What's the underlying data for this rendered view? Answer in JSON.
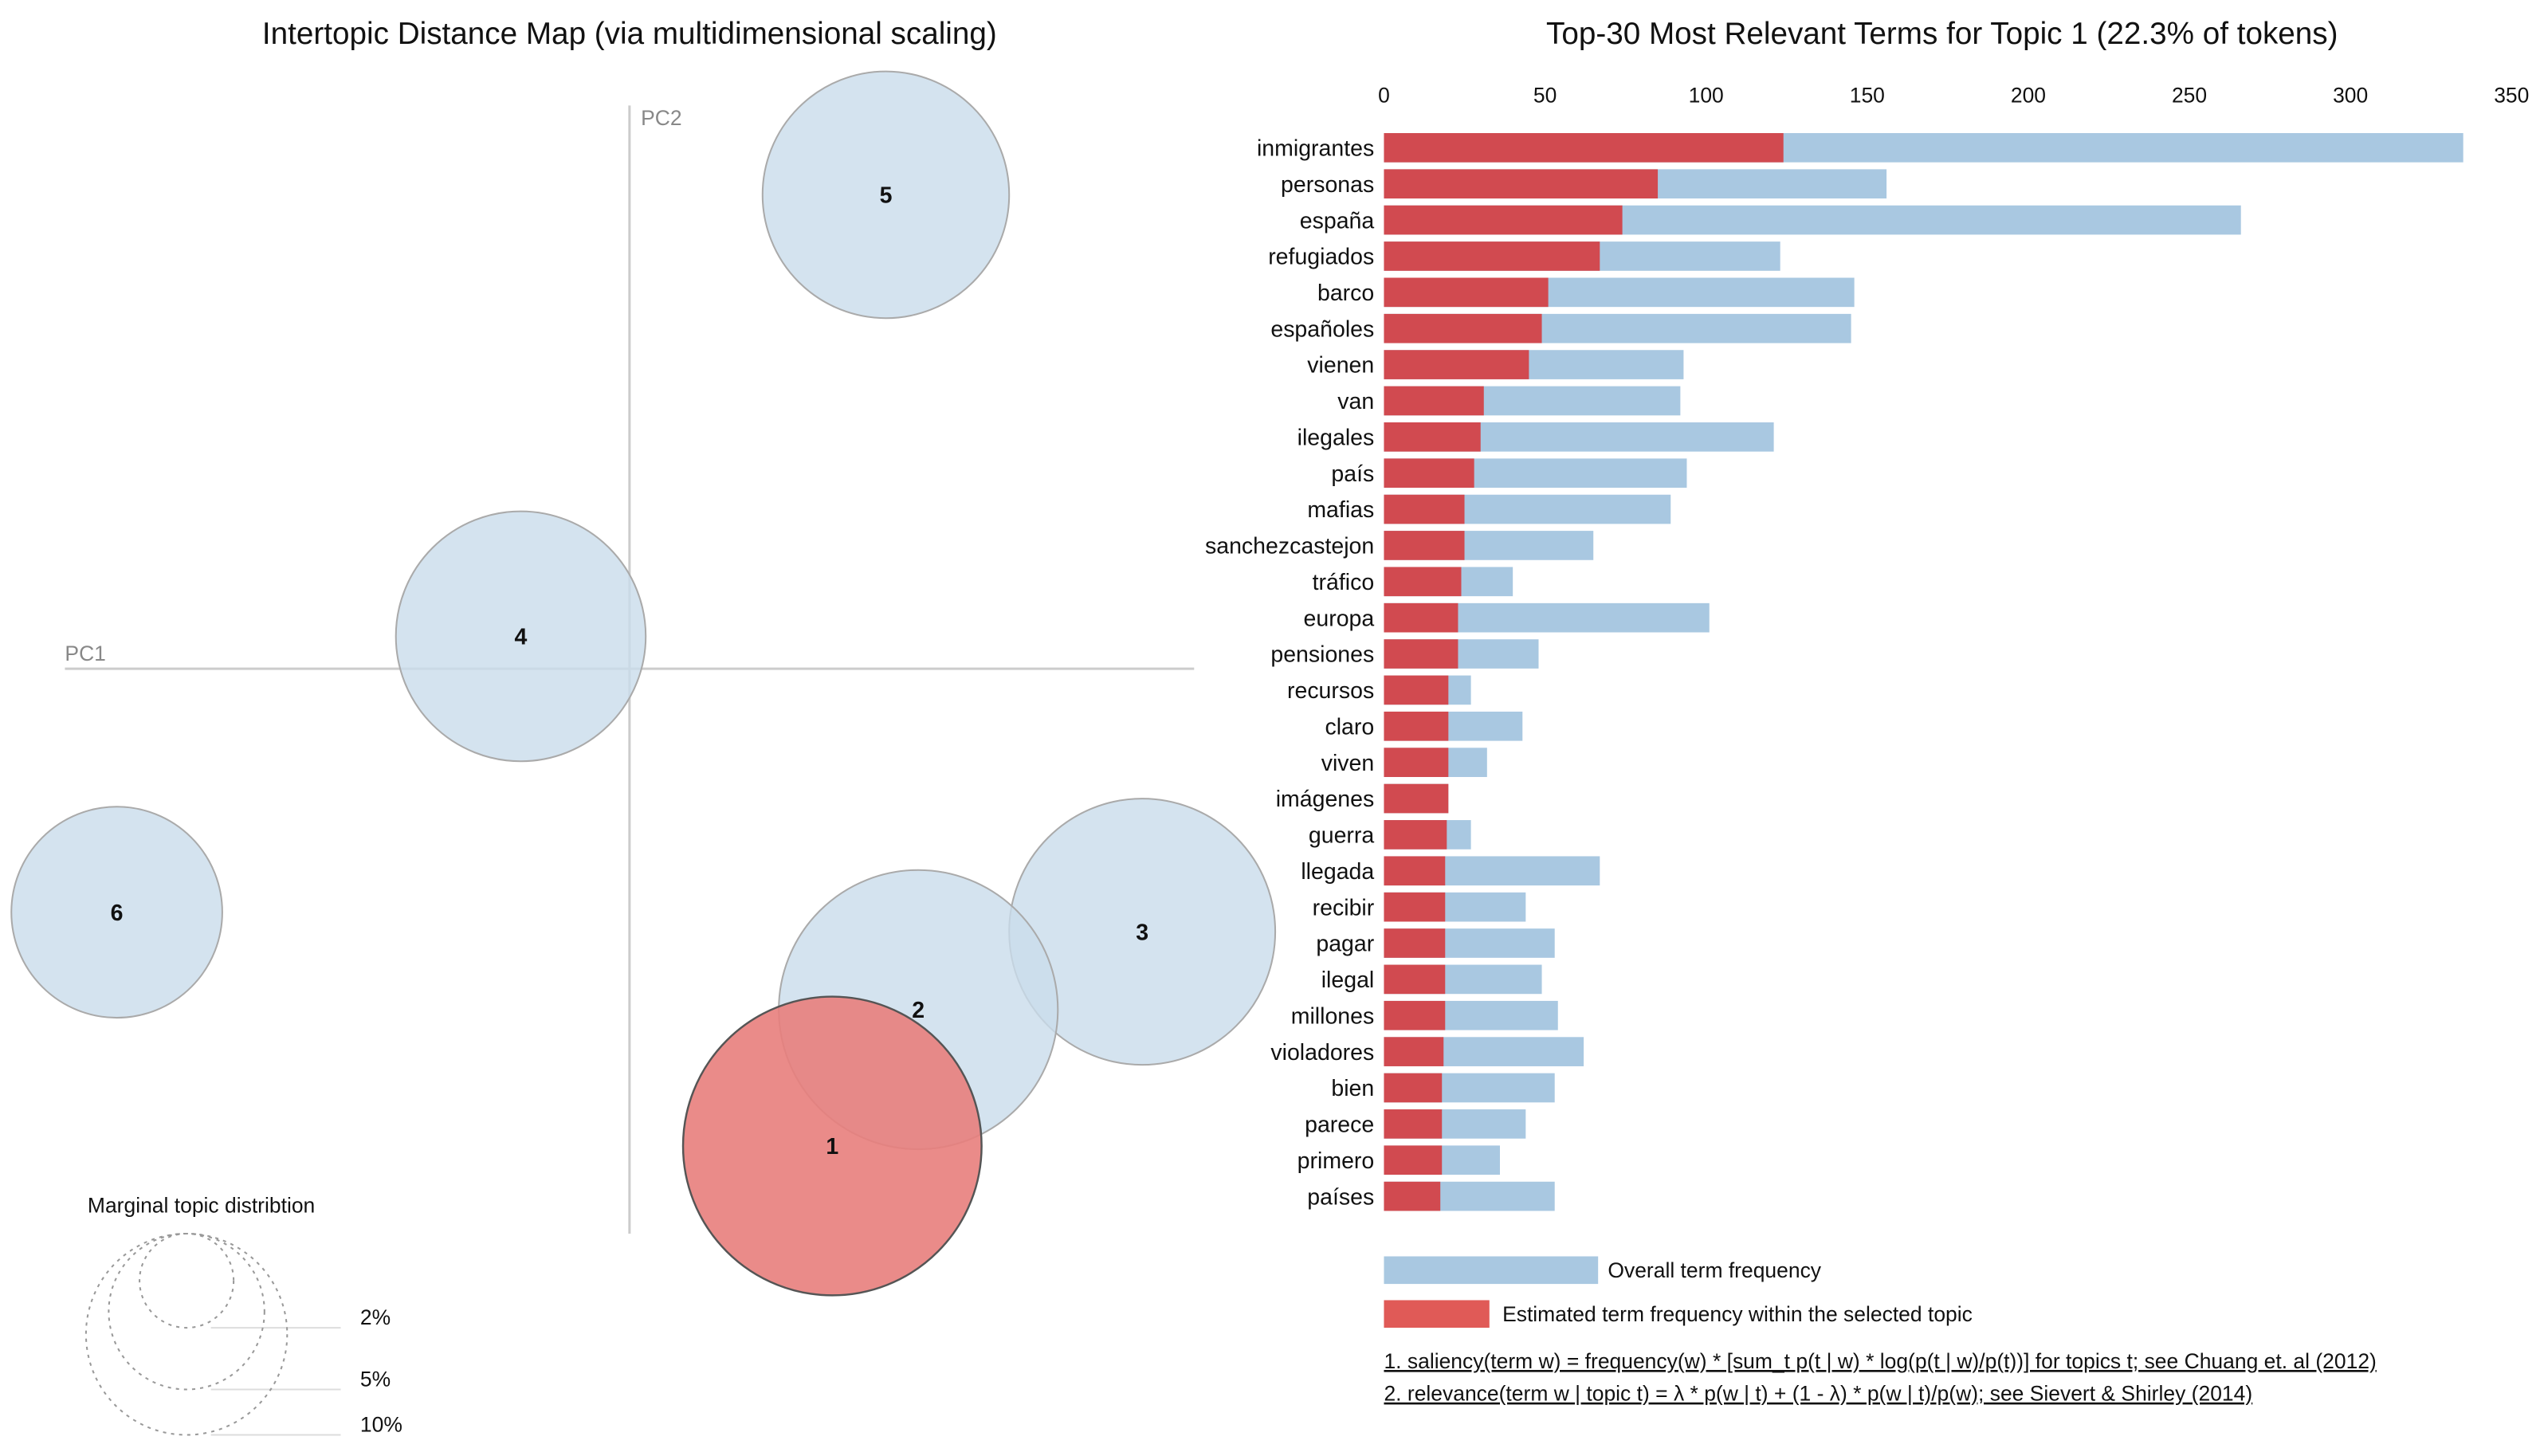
{
  "colors": {
    "overall": "#a9c8e1",
    "topic": "#d14a50",
    "selected_topic": "#e87e7c",
    "topic_circle": "#c9dceb"
  },
  "left_panel": {
    "title": "Intertopic Distance Map (via multidimensional scaling)",
    "axis_x_label": "PC1",
    "axis_y_label": "PC2",
    "selected_topic": "1",
    "topics": [
      {
        "label": "1"
      },
      {
        "label": "2"
      },
      {
        "label": "3"
      },
      {
        "label": "4"
      },
      {
        "label": "5"
      },
      {
        "label": "6"
      }
    ],
    "legend": {
      "title": "Marginal topic distribtion",
      "sizes": [
        "2%",
        "5%",
        "10%"
      ]
    }
  },
  "chart_data": {
    "type": "bar",
    "orientation": "horizontal",
    "title": "Top-30 Most Relevant Terms for Topic 1 (22.3% of tokens)",
    "xlim": [
      0,
      350
    ],
    "xticks": [
      "0",
      "50",
      "100",
      "150",
      "200",
      "250",
      "300",
      "350"
    ],
    "categories": [
      "inmigrantes",
      "personas",
      "españa",
      "refugiados",
      "barco",
      "españoles",
      "vienen",
      "van",
      "ilegales",
      "país",
      "mafias",
      "sanchezcastejon",
      "tráfico",
      "europa",
      "pensiones",
      "recursos",
      "claro",
      "viven",
      "imágenes",
      "guerra",
      "llegada",
      "recibir",
      "pagar",
      "ilegal",
      "millones",
      "violadores",
      "bien",
      "parece",
      "primero",
      "países"
    ],
    "series": [
      {
        "name": "Overall term frequency",
        "values": [
          335,
          156,
          266,
          123,
          146,
          145,
          93,
          92,
          121,
          94,
          89,
          65,
          40,
          101,
          48,
          27,
          43,
          32,
          20,
          27,
          67,
          44,
          53,
          49,
          54,
          62,
          53,
          44,
          36,
          53
        ]
      },
      {
        "name": "Estimated term frequency within the selected topic",
        "values": [
          124,
          85,
          74,
          67,
          51,
          49,
          45,
          31,
          30,
          28,
          25,
          25,
          24,
          23,
          23,
          20,
          20,
          20,
          20,
          19.5,
          19,
          19,
          19,
          19,
          19,
          18.5,
          18,
          18,
          18,
          17.5
        ]
      }
    ],
    "legend": [
      "Overall term frequency",
      "Estimated term frequency within the selected topic"
    ],
    "footnotes": [
      "1. saliency(term w) = frequency(w) * [sum_t p(t | w) * log(p(t | w)/p(t))] for topics t; see Chuang et. al (2012)",
      "2. relevance(term w | topic t) = λ * p(w | t) + (1 - λ) * p(w | t)/p(w); see Sievert & Shirley (2014)"
    ]
  }
}
